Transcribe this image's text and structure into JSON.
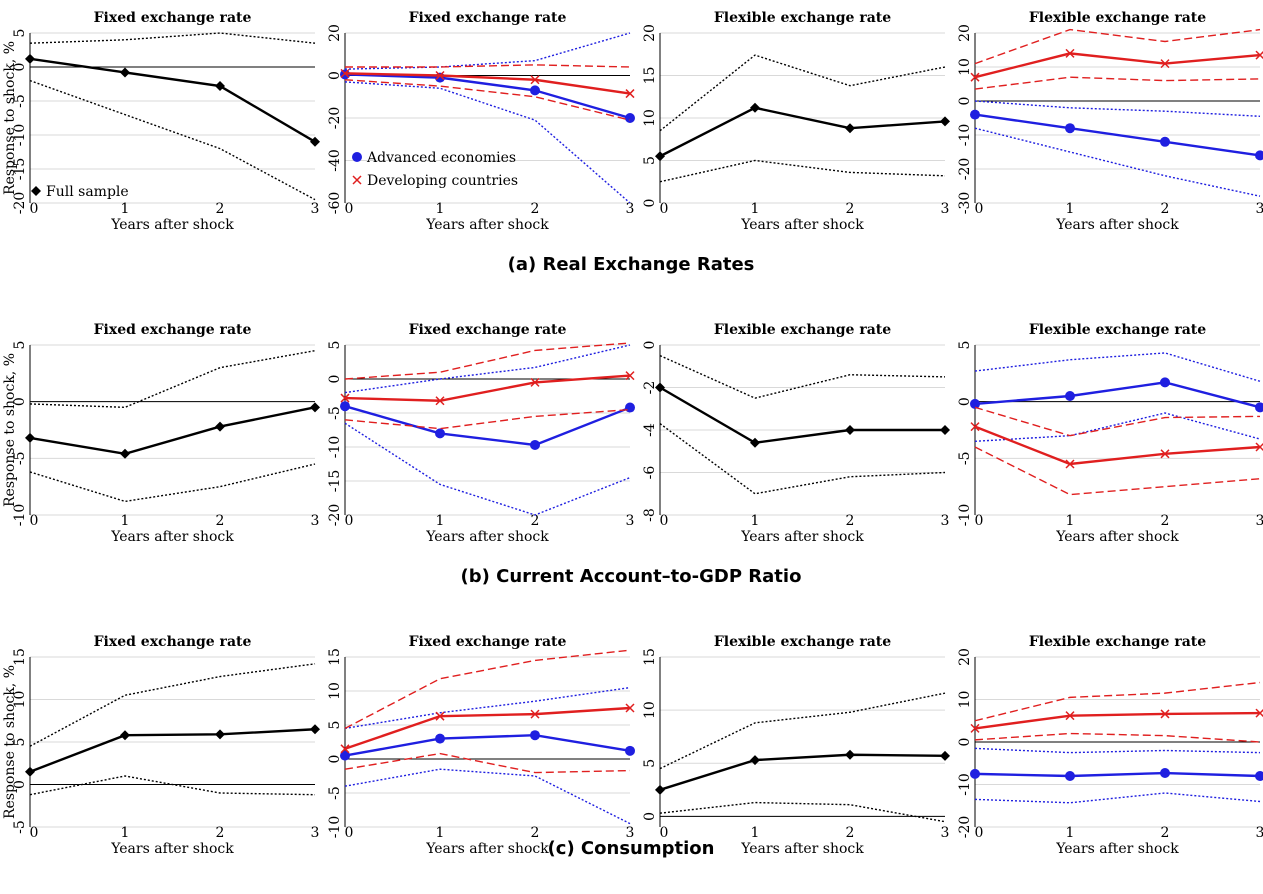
{
  "colors": {
    "full": "#000000",
    "advanced": "#1f1fe0",
    "developing": "#e01f1f",
    "grid": "#d9d9d9"
  },
  "legend": {
    "full_sample": "Full sample",
    "advanced": "Advanced economies",
    "developing": "Developing countries"
  },
  "chart_data": [
    {
      "type": "line",
      "group": "Real Exchange Rates",
      "caption": "(a) Real Exchange Rates",
      "title": "Fixed exchange rate",
      "xlabel": "Years after shock",
      "ylabel": "Response to shock, %",
      "x": [
        0,
        1,
        2,
        3
      ],
      "ylim": [
        -20,
        5
      ],
      "yticks": [
        5,
        0,
        -5,
        -10,
        -15,
        -20
      ],
      "legend": "full",
      "series": [
        {
          "name": "Full sample",
          "color": "full",
          "role": "estimate",
          "marker": "diamond",
          "values": [
            1.2,
            -0.8,
            -2.8,
            -11.0
          ]
        },
        {
          "name": "",
          "color": "full",
          "role": "band",
          "values": [
            3.5,
            4.0,
            5.0,
            3.5
          ]
        },
        {
          "name": "",
          "color": "full",
          "role": "band",
          "values": [
            -2.0,
            -7.0,
            -12.0,
            -19.5
          ]
        }
      ]
    },
    {
      "type": "line",
      "group": "Real Exchange Rates",
      "title": "Fixed exchange rate",
      "xlabel": "Years after shock",
      "ylabel": "",
      "x": [
        0,
        1,
        2,
        3
      ],
      "ylim": [
        -60,
        20
      ],
      "yticks": [
        20,
        0,
        -20,
        -40,
        -60
      ],
      "legend": "groups",
      "series": [
        {
          "name": "Advanced economies",
          "color": "advanced",
          "role": "estimate",
          "marker": "circle",
          "values": [
            0.5,
            -1.0,
            -7.0,
            -20.0
          ]
        },
        {
          "name": "",
          "color": "advanced",
          "role": "band",
          "values": [
            3.0,
            4.0,
            7.0,
            20.0
          ]
        },
        {
          "name": "",
          "color": "advanced",
          "role": "band",
          "values": [
            -3.0,
            -6.0,
            -21.0,
            -60.0
          ]
        },
        {
          "name": "Developing countries",
          "color": "developing",
          "role": "estimate",
          "marker": "x",
          "values": [
            1.0,
            0.0,
            -2.0,
            -8.5
          ]
        },
        {
          "name": "",
          "color": "developing",
          "role": "band",
          "values": [
            4.0,
            4.0,
            5.0,
            4.0
          ]
        },
        {
          "name": "",
          "color": "developing",
          "role": "band",
          "values": [
            -2.0,
            -5.0,
            -10.0,
            -21.0
          ]
        }
      ]
    },
    {
      "type": "line",
      "group": "Real Exchange Rates",
      "title": "Flexible exchange rate",
      "xlabel": "Years after shock",
      "ylabel": "",
      "x": [
        0,
        1,
        2,
        3
      ],
      "ylim": [
        0,
        20
      ],
      "yticks": [
        20,
        15,
        10,
        5,
        0
      ],
      "legend": "none",
      "series": [
        {
          "name": "",
          "color": "full",
          "role": "estimate",
          "marker": "diamond",
          "values": [
            5.5,
            11.2,
            8.8,
            9.6
          ]
        },
        {
          "name": "",
          "color": "full",
          "role": "band",
          "values": [
            8.5,
            17.4,
            13.8,
            16.0
          ]
        },
        {
          "name": "",
          "color": "full",
          "role": "band",
          "values": [
            2.5,
            5.0,
            3.6,
            3.2
          ]
        }
      ]
    },
    {
      "type": "line",
      "group": "Real Exchange Rates",
      "title": "Flexible exchange rate",
      "xlabel": "Years after shock",
      "ylabel": "",
      "x": [
        0,
        1,
        2,
        3
      ],
      "ylim": [
        -30,
        20
      ],
      "yticks": [
        20,
        10,
        0,
        -10,
        -20,
        -30
      ],
      "legend": "none",
      "series": [
        {
          "name": "",
          "color": "advanced",
          "role": "estimate",
          "marker": "circle",
          "values": [
            -4.0,
            -8.0,
            -12.0,
            -16.0
          ]
        },
        {
          "name": "",
          "color": "advanced",
          "role": "band",
          "values": [
            0.0,
            -2.0,
            -3.0,
            -4.5
          ]
        },
        {
          "name": "",
          "color": "advanced",
          "role": "band",
          "values": [
            -8.0,
            -15.0,
            -22.0,
            -28.0
          ]
        },
        {
          "name": "",
          "color": "developing",
          "role": "estimate",
          "marker": "x",
          "values": [
            7.0,
            14.0,
            11.0,
            13.5
          ]
        },
        {
          "name": "",
          "color": "developing",
          "role": "band",
          "values": [
            11.0,
            21.0,
            17.5,
            21.0
          ]
        },
        {
          "name": "",
          "color": "developing",
          "role": "band",
          "values": [
            3.5,
            7.0,
            6.0,
            6.5
          ]
        }
      ]
    },
    {
      "type": "line",
      "group": "Current Account-to-GDP Ratio",
      "caption": "(b) Current Account–to-GDP Ratio",
      "title": "Fixed exchange rate",
      "xlabel": "Years after shock",
      "ylabel": "Response to shock, %",
      "x": [
        0,
        1,
        2,
        3
      ],
      "ylim": [
        -10,
        5
      ],
      "yticks": [
        5,
        0,
        -5,
        -10
      ],
      "legend": "none",
      "series": [
        {
          "name": "",
          "color": "full",
          "role": "estimate",
          "marker": "diamond",
          "values": [
            -3.2,
            -4.6,
            -2.2,
            -0.5
          ]
        },
        {
          "name": "",
          "color": "full",
          "role": "band",
          "values": [
            -0.2,
            -0.5,
            3.0,
            4.5
          ]
        },
        {
          "name": "",
          "color": "full",
          "role": "band",
          "values": [
            -6.2,
            -8.8,
            -7.5,
            -5.5
          ]
        }
      ]
    },
    {
      "type": "line",
      "group": "Current Account-to-GDP Ratio",
      "title": "Fixed exchange rate",
      "xlabel": "Years after shock",
      "ylabel": "",
      "x": [
        0,
        1,
        2,
        3
      ],
      "ylim": [
        -20,
        5
      ],
      "yticks": [
        5,
        0,
        -5,
        -10,
        -15,
        -20
      ],
      "legend": "none",
      "series": [
        {
          "name": "",
          "color": "advanced",
          "role": "estimate",
          "marker": "circle",
          "values": [
            -4.0,
            -8.0,
            -9.7,
            -4.2
          ]
        },
        {
          "name": "",
          "color": "advanced",
          "role": "band",
          "values": [
            -2.0,
            0.0,
            1.7,
            5.0
          ]
        },
        {
          "name": "",
          "color": "advanced",
          "role": "band",
          "values": [
            -6.5,
            -15.5,
            -20.0,
            -14.5
          ]
        },
        {
          "name": "",
          "color": "developing",
          "role": "estimate",
          "marker": "x",
          "values": [
            -2.8,
            -3.2,
            -0.5,
            0.5
          ]
        },
        {
          "name": "",
          "color": "developing",
          "role": "band",
          "values": [
            0.0,
            1.0,
            4.2,
            5.3
          ]
        },
        {
          "name": "",
          "color": "developing",
          "role": "band",
          "values": [
            -6.0,
            -7.3,
            -5.5,
            -4.5
          ]
        }
      ]
    },
    {
      "type": "line",
      "group": "Current Account-to-GDP Ratio",
      "title": "Flexible exchange rate",
      "xlabel": "Years after shock",
      "ylabel": "",
      "x": [
        0,
        1,
        2,
        3
      ],
      "ylim": [
        -8,
        0
      ],
      "yticks": [
        0,
        -2,
        -4,
        -6,
        -8
      ],
      "legend": "none",
      "series": [
        {
          "name": "",
          "color": "full",
          "role": "estimate",
          "marker": "diamond",
          "values": [
            -2.0,
            -4.6,
            -4.0,
            -4.0
          ]
        },
        {
          "name": "",
          "color": "full",
          "role": "band",
          "values": [
            -0.5,
            -2.5,
            -1.4,
            -1.5
          ]
        },
        {
          "name": "",
          "color": "full",
          "role": "band",
          "values": [
            -3.7,
            -7.0,
            -6.2,
            -6.0
          ]
        }
      ]
    },
    {
      "type": "line",
      "group": "Current Account-to-GDP Ratio",
      "title": "Flexible exchange rate",
      "xlabel": "Years after shock",
      "ylabel": "",
      "x": [
        0,
        1,
        2,
        3
      ],
      "ylim": [
        -10,
        5
      ],
      "yticks": [
        5,
        0,
        -5,
        -10
      ],
      "legend": "none",
      "series": [
        {
          "name": "",
          "color": "advanced",
          "role": "estimate",
          "marker": "circle",
          "values": [
            -0.2,
            0.5,
            1.7,
            -0.5
          ]
        },
        {
          "name": "",
          "color": "advanced",
          "role": "band",
          "values": [
            2.7,
            3.7,
            4.3,
            1.8
          ]
        },
        {
          "name": "",
          "color": "advanced",
          "role": "band",
          "values": [
            -3.5,
            -3.0,
            -1.0,
            -3.3
          ]
        },
        {
          "name": "",
          "color": "developing",
          "role": "estimate",
          "marker": "x",
          "values": [
            -2.2,
            -5.5,
            -4.6,
            -4.0
          ]
        },
        {
          "name": "",
          "color": "developing",
          "role": "band",
          "values": [
            -0.5,
            -3.0,
            -1.4,
            -1.3
          ]
        },
        {
          "name": "",
          "color": "developing",
          "role": "band",
          "values": [
            -4.0,
            -8.2,
            -7.5,
            -6.8
          ]
        }
      ]
    },
    {
      "type": "line",
      "group": "Consumption",
      "caption": "(c) Consumption",
      "title": "Fixed exchange rate",
      "xlabel": "Years after shock",
      "ylabel": "Response to shock, %",
      "x": [
        0,
        1,
        2,
        3
      ],
      "ylim": [
        -5,
        15
      ],
      "yticks": [
        15,
        10,
        5,
        0,
        -5
      ],
      "legend": "none",
      "series": [
        {
          "name": "",
          "color": "full",
          "role": "estimate",
          "marker": "diamond",
          "values": [
            1.5,
            5.8,
            5.9,
            6.5
          ]
        },
        {
          "name": "",
          "color": "full",
          "role": "band",
          "values": [
            4.5,
            10.5,
            12.7,
            14.2
          ]
        },
        {
          "name": "",
          "color": "full",
          "role": "band",
          "values": [
            -1.2,
            1.0,
            -1.0,
            -1.2
          ]
        }
      ]
    },
    {
      "type": "line",
      "group": "Consumption",
      "title": "Fixed exchange rate",
      "xlabel": "Years after shock",
      "ylabel": "",
      "x": [
        0,
        1,
        2,
        3
      ],
      "ylim": [
        -10,
        15
      ],
      "yticks": [
        15,
        10,
        5,
        0,
        -5,
        -10
      ],
      "legend": "none",
      "series": [
        {
          "name": "",
          "color": "advanced",
          "role": "estimate",
          "marker": "circle",
          "values": [
            0.5,
            3.0,
            3.5,
            1.2
          ]
        },
        {
          "name": "",
          "color": "advanced",
          "role": "band",
          "values": [
            4.5,
            6.8,
            8.5,
            10.5
          ]
        },
        {
          "name": "",
          "color": "advanced",
          "role": "band",
          "values": [
            -4.0,
            -1.5,
            -2.5,
            -9.5
          ]
        },
        {
          "name": "",
          "color": "developing",
          "role": "estimate",
          "marker": "x",
          "values": [
            1.5,
            6.3,
            6.6,
            7.5
          ]
        },
        {
          "name": "",
          "color": "developing",
          "role": "band",
          "values": [
            4.5,
            11.8,
            14.5,
            16.0
          ]
        },
        {
          "name": "",
          "color": "developing",
          "role": "band",
          "values": [
            -1.5,
            0.8,
            -2.0,
            -1.7
          ]
        }
      ]
    },
    {
      "type": "line",
      "group": "Consumption",
      "title": "Flexible exchange rate",
      "xlabel": "Years after shock",
      "ylabel": "",
      "x": [
        0,
        1,
        2,
        3
      ],
      "ylim": [
        -1,
        15
      ],
      "yticks": [
        15,
        10,
        5,
        0
      ],
      "legend": "none",
      "series": [
        {
          "name": "",
          "color": "full",
          "role": "estimate",
          "marker": "diamond",
          "values": [
            2.5,
            5.3,
            5.8,
            5.7
          ]
        },
        {
          "name": "",
          "color": "full",
          "role": "band",
          "values": [
            4.5,
            8.8,
            9.8,
            11.6
          ]
        },
        {
          "name": "",
          "color": "full",
          "role": "band",
          "values": [
            0.3,
            1.3,
            1.1,
            -0.5
          ]
        }
      ]
    },
    {
      "type": "line",
      "group": "Consumption",
      "title": "Flexible exchange rate",
      "xlabel": "Years after shock",
      "ylabel": "",
      "x": [
        0,
        1,
        2,
        3
      ],
      "ylim": [
        -20,
        20
      ],
      "yticks": [
        20,
        10,
        0,
        -10,
        -20
      ],
      "legend": "none",
      "series": [
        {
          "name": "",
          "color": "advanced",
          "role": "estimate",
          "marker": "circle",
          "values": [
            -7.5,
            -8.0,
            -7.3,
            -8.0
          ]
        },
        {
          "name": "",
          "color": "advanced",
          "role": "band",
          "values": [
            -1.5,
            -2.5,
            -2.0,
            -2.5
          ]
        },
        {
          "name": "",
          "color": "advanced",
          "role": "band",
          "values": [
            -13.5,
            -14.3,
            -12.0,
            -14.0
          ]
        },
        {
          "name": "",
          "color": "developing",
          "role": "estimate",
          "marker": "x",
          "values": [
            3.2,
            6.2,
            6.6,
            6.8
          ]
        },
        {
          "name": "",
          "color": "developing",
          "role": "band",
          "values": [
            5.0,
            10.5,
            11.5,
            14.0
          ]
        },
        {
          "name": "",
          "color": "developing",
          "role": "band",
          "values": [
            0.5,
            2.0,
            1.5,
            0.0
          ]
        }
      ]
    }
  ]
}
